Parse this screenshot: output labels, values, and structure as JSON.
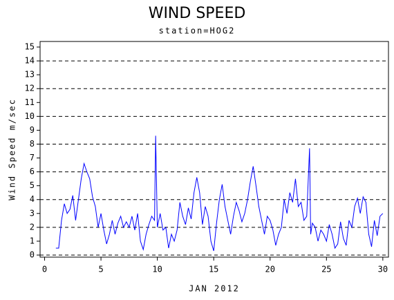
{
  "chart_data": {
    "type": "line",
    "title": "WIND SPEED",
    "subtitle": "station=HOG2",
    "y_label": "Wind Speed m/sec",
    "x_label": "JAN 2012",
    "xlim": [
      -0.4,
      30.5
    ],
    "xticks": [
      0,
      5,
      10,
      15,
      20,
      25,
      30
    ],
    "ylim": [
      -0.15,
      15.4
    ],
    "yticks": [
      0,
      1,
      2,
      3,
      4,
      5,
      6,
      7,
      8,
      9,
      10,
      11,
      12,
      13,
      14,
      15
    ],
    "grid_lines": [
      0,
      2,
      4,
      6,
      8,
      10,
      12,
      14
    ],
    "series": [
      {
        "color": "#0000ff",
        "x": [
          1.0,
          1.25,
          1.5,
          1.75,
          2.0,
          2.25,
          2.5,
          2.75,
          3.0,
          3.25,
          3.5,
          3.75,
          4.0,
          4.25,
          4.5,
          4.75,
          5.0,
          5.25,
          5.5,
          5.75,
          6.0,
          6.25,
          6.5,
          6.75,
          7.0,
          7.25,
          7.5,
          7.75,
          8.0,
          8.25,
          8.5,
          8.75,
          9.0,
          9.25,
          9.5,
          9.75,
          9.85,
          10.0,
          10.25,
          10.5,
          10.75,
          11.0,
          11.25,
          11.5,
          11.75,
          12.0,
          12.25,
          12.5,
          12.75,
          13.0,
          13.25,
          13.5,
          13.75,
          14.0,
          14.25,
          14.5,
          14.75,
          15.0,
          15.25,
          15.5,
          15.75,
          16.0,
          16.25,
          16.5,
          16.75,
          17.0,
          17.25,
          17.5,
          17.75,
          18.0,
          18.25,
          18.5,
          18.75,
          19.0,
          19.25,
          19.5,
          19.75,
          20.0,
          20.25,
          20.5,
          20.75,
          21.0,
          21.25,
          21.5,
          21.75,
          22.0,
          22.25,
          22.5,
          22.75,
          23.0,
          23.25,
          23.5,
          23.6,
          23.75,
          24.0,
          24.25,
          24.5,
          24.75,
          25.0,
          25.25,
          25.5,
          25.75,
          26.0,
          26.25,
          26.5,
          26.75,
          27.0,
          27.25,
          27.5,
          27.75,
          28.0,
          28.25,
          28.5,
          28.75,
          29.0,
          29.25,
          29.5,
          29.75,
          30.0
        ],
        "values": [
          0.5,
          0.5,
          2.5,
          3.7,
          3.0,
          3.3,
          4.3,
          2.5,
          4.0,
          5.5,
          6.6,
          6.0,
          5.5,
          4.2,
          3.5,
          2.0,
          3.0,
          1.8,
          0.8,
          1.5,
          2.5,
          1.5,
          2.3,
          2.8,
          2.0,
          2.4,
          2.0,
          2.8,
          1.8,
          3.0,
          1.0,
          0.4,
          1.5,
          2.2,
          2.8,
          2.5,
          8.6,
          2.0,
          3.0,
          1.8,
          2.0,
          0.5,
          1.5,
          1.0,
          1.8,
          3.8,
          2.8,
          2.2,
          3.4,
          2.6,
          4.5,
          5.6,
          4.5,
          2.2,
          3.5,
          2.8,
          1.0,
          0.3,
          2.3,
          4.0,
          5.1,
          3.5,
          2.5,
          1.5,
          2.8,
          3.8,
          3.2,
          2.4,
          3.0,
          4.0,
          5.3,
          6.4,
          5.0,
          3.5,
          2.5,
          1.5,
          2.8,
          2.5,
          1.8,
          0.7,
          1.5,
          2.0,
          4.0,
          3.0,
          4.5,
          3.8,
          5.5,
          3.5,
          3.8,
          2.5,
          2.8,
          7.7,
          1.5,
          2.3,
          2.0,
          1.0,
          1.8,
          1.5,
          1.0,
          2.2,
          1.5,
          0.5,
          0.8,
          2.4,
          1.2,
          0.7,
          2.5,
          2.0,
          3.5,
          4.1,
          3.0,
          4.2,
          3.8,
          1.5,
          0.6,
          2.5,
          1.4,
          2.8,
          3.0
        ]
      }
    ]
  }
}
